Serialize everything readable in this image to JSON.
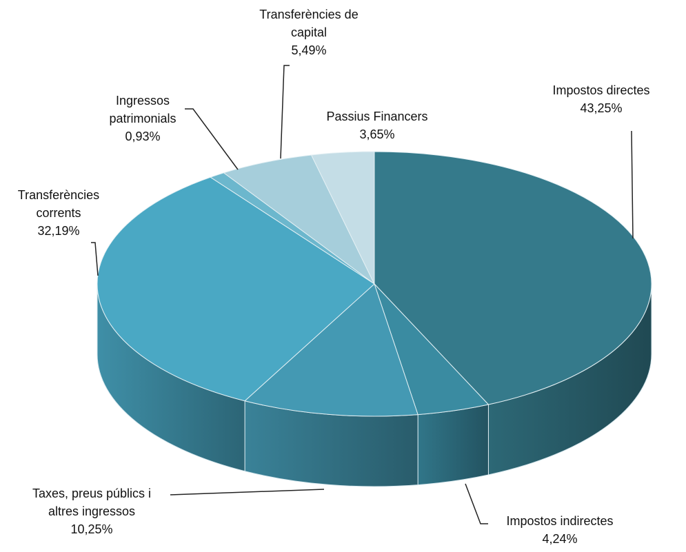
{
  "chart_data": {
    "type": "pie",
    "categories": [
      "Impostos directes",
      "Impostos indirectes",
      "Taxes, preus públics i altres ingressos",
      "Transferències corrents",
      "Ingressos patrimonials",
      "Transferències de capital",
      "Passius Financers"
    ],
    "values": [
      43.25,
      4.24,
      10.25,
      32.19,
      0.93,
      5.49,
      3.65
    ],
    "value_labels": [
      "43,25%",
      "4,24%",
      "10,25%",
      "32,19%",
      "0,93%",
      "5,49%",
      "3,65%"
    ],
    "colors": [
      "#357a8b",
      "#3a8ba1",
      "#4499b3",
      "#4aa8c4",
      "#6cb7cd",
      "#a6cedb",
      "#c4dde6"
    ]
  }
}
